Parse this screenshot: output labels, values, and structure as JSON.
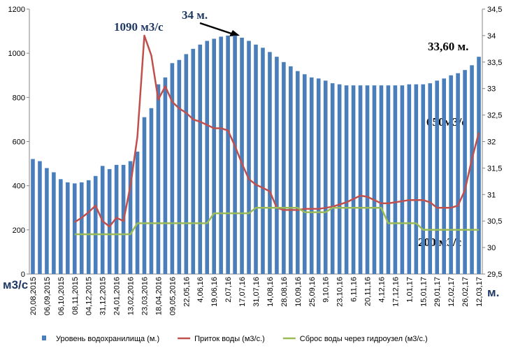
{
  "chart_data": {
    "type": "bar-line",
    "categories": [
      "20,08,2015",
      null,
      "06,09,2015",
      null,
      "06,10,2015",
      null,
      "08,11,2015",
      null,
      "04,12,2015",
      null,
      "31,12,2015",
      null,
      "24,01,2016",
      null,
      "13,02,2016",
      null,
      "23,03,2016",
      null,
      "18,04,2016",
      null,
      "09,05,2016",
      null,
      "22,05,16",
      null,
      "4,06,16",
      null,
      "19,06,16",
      null,
      "2,07,16",
      null,
      "17,07,16",
      null,
      "31,07,16",
      null,
      "14,08,16",
      null,
      "28,08,16",
      null,
      "10,09,16",
      null,
      "25,09,16",
      null,
      "9,10,16",
      null,
      "23,10,16",
      null,
      "6,11,16",
      null,
      "20,11,16",
      null,
      "4,12,16",
      null,
      "17,12,16",
      null,
      "1,01,17",
      null,
      "15,01,17",
      null,
      "29,01,17",
      null,
      "12,02,17",
      null,
      "26,02,17",
      null,
      "12,03,17"
    ],
    "series": [
      {
        "name": "Уровень водохранилища (м.)",
        "kind": "bar",
        "axis": "y2",
        "color": "#4a7ebb",
        "values": [
          31.67,
          31.63,
          31.5,
          31.42,
          31.29,
          31.23,
          31.21,
          31.23,
          31.27,
          31.35,
          31.54,
          31.48,
          31.56,
          31.56,
          31.63,
          31.81,
          32.46,
          32.63,
          33.08,
          33.21,
          33.48,
          33.54,
          33.65,
          33.75,
          33.83,
          33.9,
          33.94,
          33.98,
          34.0,
          34.0,
          33.96,
          33.9,
          33.83,
          33.77,
          33.69,
          33.6,
          33.5,
          33.42,
          33.33,
          33.27,
          33.21,
          33.19,
          33.15,
          33.1,
          33.08,
          33.06,
          33.06,
          33.06,
          33.06,
          33.06,
          33.06,
          33.06,
          33.06,
          33.06,
          33.08,
          33.08,
          33.08,
          33.1,
          33.15,
          33.19,
          33.25,
          33.29,
          33.35,
          33.44,
          33.6
        ]
      },
      {
        "name": "Приток воды (м3/с.)",
        "kind": "line",
        "color": "#c0504d",
        "values": [
          null,
          null,
          null,
          null,
          null,
          null,
          235,
          255,
          280,
          310,
          240,
          215,
          255,
          240,
          400,
          620,
          1080,
          990,
          790,
          850,
          780,
          750,
          730,
          700,
          690,
          675,
          660,
          660,
          650,
          580,
          500,
          430,
          405,
          390,
          375,
          300,
          290,
          290,
          290,
          295,
          295,
          295,
          300,
          305,
          315,
          325,
          340,
          355,
          350,
          335,
          320,
          320,
          325,
          330,
          335,
          335,
          335,
          325,
          300,
          300,
          300,
          310,
          380,
          520,
          640
        ]
      },
      {
        "name": "Сброс воды через гидроузел (м3/с.)",
        "kind": "line",
        "color": "#9bbb59",
        "values": [
          null,
          null,
          null,
          null,
          null,
          null,
          180,
          180,
          180,
          180,
          180,
          180,
          180,
          180,
          180,
          230,
          230,
          230,
          230,
          230,
          230,
          230,
          230,
          230,
          230,
          230,
          275,
          275,
          275,
          275,
          275,
          275,
          300,
          300,
          300,
          300,
          300,
          300,
          300,
          280,
          280,
          280,
          280,
          300,
          300,
          300,
          300,
          300,
          300,
          300,
          300,
          230,
          230,
          230,
          230,
          230,
          200,
          200,
          200,
          200,
          200,
          200,
          200,
          200,
          200
        ]
      }
    ],
    "ylim": [
      0,
      1200
    ],
    "yticks": [
      0,
      200,
      400,
      600,
      800,
      1000,
      1200
    ],
    "y2lim": [
      29.5,
      34.5
    ],
    "y2ticks": [
      {
        "value": 29.5,
        "label": "29,5"
      },
      30,
      {
        "value": 30.5,
        "label": "30,5"
      },
      31,
      {
        "value": 31.5,
        "label": "31,5"
      },
      32,
      {
        "value": 32.5,
        "label": "32,5"
      },
      33,
      {
        "value": 33.5,
        "label": "33,5"
      },
      34,
      {
        "value": 34.5,
        "label": "34,5"
      }
    ],
    "ylabel": "м3/с",
    "y2label": "м.",
    "annotations": [
      "1090 м3/с",
      "34 м.",
      "33,60 м.",
      "650м3/с",
      "200 м3/с"
    ],
    "legend": "bottom"
  }
}
